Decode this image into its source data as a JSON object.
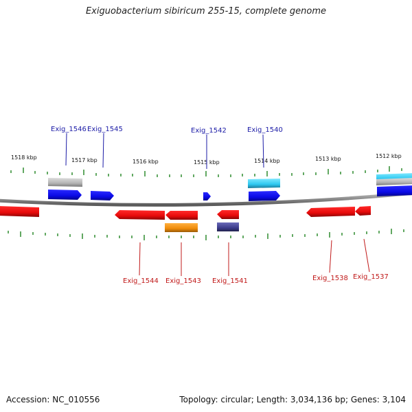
{
  "title": "Exiguobacterium sibiricum 255-15, complete genome",
  "footer": {
    "accession": "Accession: NC_010556",
    "summary": "Topology: circular; Length: 3,034,136 bp; Genes: 3,104"
  },
  "colors": {
    "backbone": "#8c8c8c",
    "tick": "#2e8b2e",
    "forward_label": "#1a1aa6",
    "reverse_label": "#c01818"
  },
  "scale_labels": [
    "1518 kbp",
    "1517 kbp",
    "1516 kbp",
    "1515 kbp",
    "1514 kbp",
    "1513 kbp",
    "1512 kbp"
  ],
  "genes_top": [
    {
      "label": "Exig_1546",
      "color": "#1a1aa6"
    },
    {
      "label": "Exig_1545",
      "color": "#1a1aa6"
    },
    {
      "label": "Exig_1542",
      "color": "#1a1aa6"
    },
    {
      "label": "Exig_1540",
      "color": "#1a1aa6"
    }
  ],
  "genes_bottom": [
    {
      "label": "Exig_1544",
      "color": "#c01818"
    },
    {
      "label": "Exig_1543",
      "color": "#c01818"
    },
    {
      "label": "Exig_1541",
      "color": "#c01818"
    },
    {
      "label": "Exig_1538",
      "color": "#c01818"
    },
    {
      "label": "Exig_1537",
      "color": "#c01818"
    }
  ],
  "feature_colors": {
    "cds_forward": "#0a0ae6",
    "cds_reverse": "#e60a0a",
    "gray_feature": "#b4b4b4",
    "cyan_feature": "#2ec8f0",
    "orange_feature": "#f08c0a",
    "purple_feature": "#3c3c8c"
  }
}
